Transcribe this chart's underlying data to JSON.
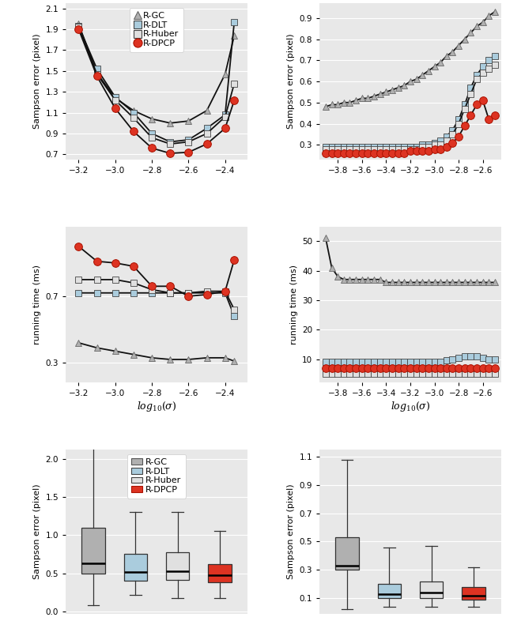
{
  "bg_color": "#e8e8e8",
  "gc_color": "#b0b0b0",
  "dlt_color": "#aaccdd",
  "huber_color": "#e0e0e0",
  "dpcp_color": "#dd3322",
  "line_color": "#111111",
  "top_left": {
    "x": [
      -3.2,
      -3.1,
      -3.0,
      -2.9,
      -2.8,
      -2.7,
      -2.6,
      -2.5,
      -2.4,
      -2.35
    ],
    "gc": [
      1.95,
      1.48,
      1.24,
      1.12,
      1.04,
      1.0,
      1.02,
      1.12,
      1.47,
      1.84
    ],
    "dlt": [
      1.93,
      1.52,
      1.25,
      1.1,
      0.9,
      0.82,
      0.84,
      0.95,
      1.08,
      1.97
    ],
    "huber": [
      1.92,
      1.47,
      1.22,
      1.05,
      0.86,
      0.8,
      0.82,
      0.9,
      1.06,
      1.38
    ],
    "dpcp": [
      1.9,
      1.45,
      1.14,
      0.92,
      0.76,
      0.71,
      0.72,
      0.8,
      0.95,
      1.22
    ],
    "ylim": [
      0.65,
      2.15
    ],
    "yticks": [
      0.7,
      0.9,
      1.1,
      1.3,
      1.5,
      1.7,
      1.9,
      2.1
    ],
    "xticks": [
      -3.2,
      -3.0,
      -2.8,
      -2.6,
      -2.4
    ],
    "xlim": [
      -3.27,
      -2.28
    ],
    "ylabel": "Sampson error (pixel)"
  },
  "top_right": {
    "x": [
      -3.9,
      -3.85,
      -3.8,
      -3.75,
      -3.7,
      -3.65,
      -3.6,
      -3.55,
      -3.5,
      -3.45,
      -3.4,
      -3.35,
      -3.3,
      -3.25,
      -3.2,
      -3.15,
      -3.1,
      -3.05,
      -3.0,
      -2.95,
      -2.9,
      -2.85,
      -2.8,
      -2.75,
      -2.7,
      -2.65,
      -2.6,
      -2.55,
      -2.5
    ],
    "gc": [
      0.48,
      0.49,
      0.49,
      0.5,
      0.5,
      0.51,
      0.52,
      0.52,
      0.53,
      0.54,
      0.55,
      0.56,
      0.57,
      0.58,
      0.6,
      0.61,
      0.63,
      0.65,
      0.67,
      0.69,
      0.72,
      0.74,
      0.77,
      0.8,
      0.83,
      0.86,
      0.88,
      0.91,
      0.93
    ],
    "dlt": [
      0.29,
      0.29,
      0.29,
      0.29,
      0.29,
      0.29,
      0.29,
      0.29,
      0.29,
      0.29,
      0.29,
      0.29,
      0.29,
      0.29,
      0.29,
      0.29,
      0.3,
      0.3,
      0.31,
      0.32,
      0.34,
      0.37,
      0.42,
      0.49,
      0.57,
      0.63,
      0.67,
      0.7,
      0.72
    ],
    "huber": [
      0.28,
      0.28,
      0.28,
      0.28,
      0.28,
      0.28,
      0.28,
      0.28,
      0.28,
      0.28,
      0.28,
      0.28,
      0.28,
      0.28,
      0.28,
      0.28,
      0.29,
      0.29,
      0.3,
      0.3,
      0.32,
      0.35,
      0.4,
      0.47,
      0.54,
      0.61,
      0.64,
      0.66,
      0.68
    ],
    "dpcp": [
      0.26,
      0.26,
      0.26,
      0.26,
      0.26,
      0.26,
      0.26,
      0.26,
      0.26,
      0.26,
      0.26,
      0.26,
      0.26,
      0.26,
      0.27,
      0.27,
      0.27,
      0.27,
      0.28,
      0.28,
      0.29,
      0.31,
      0.34,
      0.39,
      0.44,
      0.49,
      0.51,
      0.42,
      0.44
    ],
    "ylim": [
      0.23,
      0.97
    ],
    "yticks": [
      0.3,
      0.4,
      0.5,
      0.6,
      0.7,
      0.8,
      0.9
    ],
    "xticks": [
      -3.8,
      -3.6,
      -3.4,
      -3.2,
      -3.0,
      -2.8,
      -2.6
    ],
    "xlim": [
      -3.95,
      -2.45
    ],
    "ylabel": "Sampson error (pixel)"
  },
  "mid_left": {
    "x": [
      -3.2,
      -3.1,
      -3.0,
      -2.9,
      -2.8,
      -2.7,
      -2.6,
      -2.5,
      -2.4,
      -2.35
    ],
    "gc": [
      0.42,
      0.39,
      0.37,
      0.35,
      0.33,
      0.32,
      0.32,
      0.33,
      0.33,
      0.31
    ],
    "dlt": [
      0.72,
      0.72,
      0.72,
      0.72,
      0.72,
      0.72,
      0.72,
      0.72,
      0.72,
      0.58
    ],
    "huber": [
      0.8,
      0.8,
      0.8,
      0.78,
      0.74,
      0.72,
      0.72,
      0.73,
      0.73,
      0.62
    ],
    "dpcp": [
      1.0,
      0.91,
      0.9,
      0.88,
      0.76,
      0.76,
      0.7,
      0.71,
      0.73,
      0.92
    ],
    "ylim": [
      0.18,
      1.12
    ],
    "yticks": [
      0.3,
      0.7
    ],
    "xticks": [
      -3.2,
      -3.0,
      -2.8,
      -2.6,
      -2.4
    ],
    "xlim": [
      -3.27,
      -2.28
    ],
    "ylabel": "running time (ms)"
  },
  "mid_right": {
    "x": [
      -3.9,
      -3.85,
      -3.8,
      -3.75,
      -3.7,
      -3.65,
      -3.6,
      -3.55,
      -3.5,
      -3.45,
      -3.4,
      -3.35,
      -3.3,
      -3.25,
      -3.2,
      -3.15,
      -3.1,
      -3.05,
      -3.0,
      -2.95,
      -2.9,
      -2.85,
      -2.8,
      -2.75,
      -2.7,
      -2.65,
      -2.6,
      -2.55,
      -2.5
    ],
    "gc": [
      51,
      41,
      38,
      37,
      37,
      37,
      37,
      37,
      37,
      37,
      36,
      36,
      36,
      36,
      36,
      36,
      36,
      36,
      36,
      36,
      36,
      36,
      36,
      36,
      36,
      36,
      36,
      36,
      36
    ],
    "dlt": [
      9,
      9,
      9,
      9,
      9,
      9,
      9,
      9,
      9,
      9,
      9,
      9,
      9,
      9,
      9,
      9,
      9,
      9,
      9,
      9,
      9.5,
      10,
      10.5,
      11,
      11,
      11,
      10.5,
      10,
      10
    ],
    "huber": [
      5,
      5,
      5,
      5,
      5,
      5,
      5,
      5,
      5,
      5,
      5,
      5,
      5,
      5,
      5,
      5,
      5,
      5,
      5,
      5,
      5,
      5,
      5,
      5,
      5,
      5,
      5,
      5,
      5
    ],
    "dpcp": [
      7,
      7,
      7,
      7,
      7,
      7,
      7,
      7,
      7,
      7,
      7,
      7,
      7,
      7,
      7,
      7,
      7,
      7,
      7,
      7,
      7,
      7,
      7,
      7,
      7,
      7,
      7,
      7,
      7
    ],
    "ylim": [
      2,
      55
    ],
    "yticks": [
      10,
      20,
      30,
      40,
      50
    ],
    "xticks": [
      -3.8,
      -3.6,
      -3.4,
      -3.2,
      -3.0,
      -2.8,
      -2.6
    ],
    "xlim": [
      -3.95,
      -2.45
    ],
    "ylabel": "running time (ms)"
  }
}
